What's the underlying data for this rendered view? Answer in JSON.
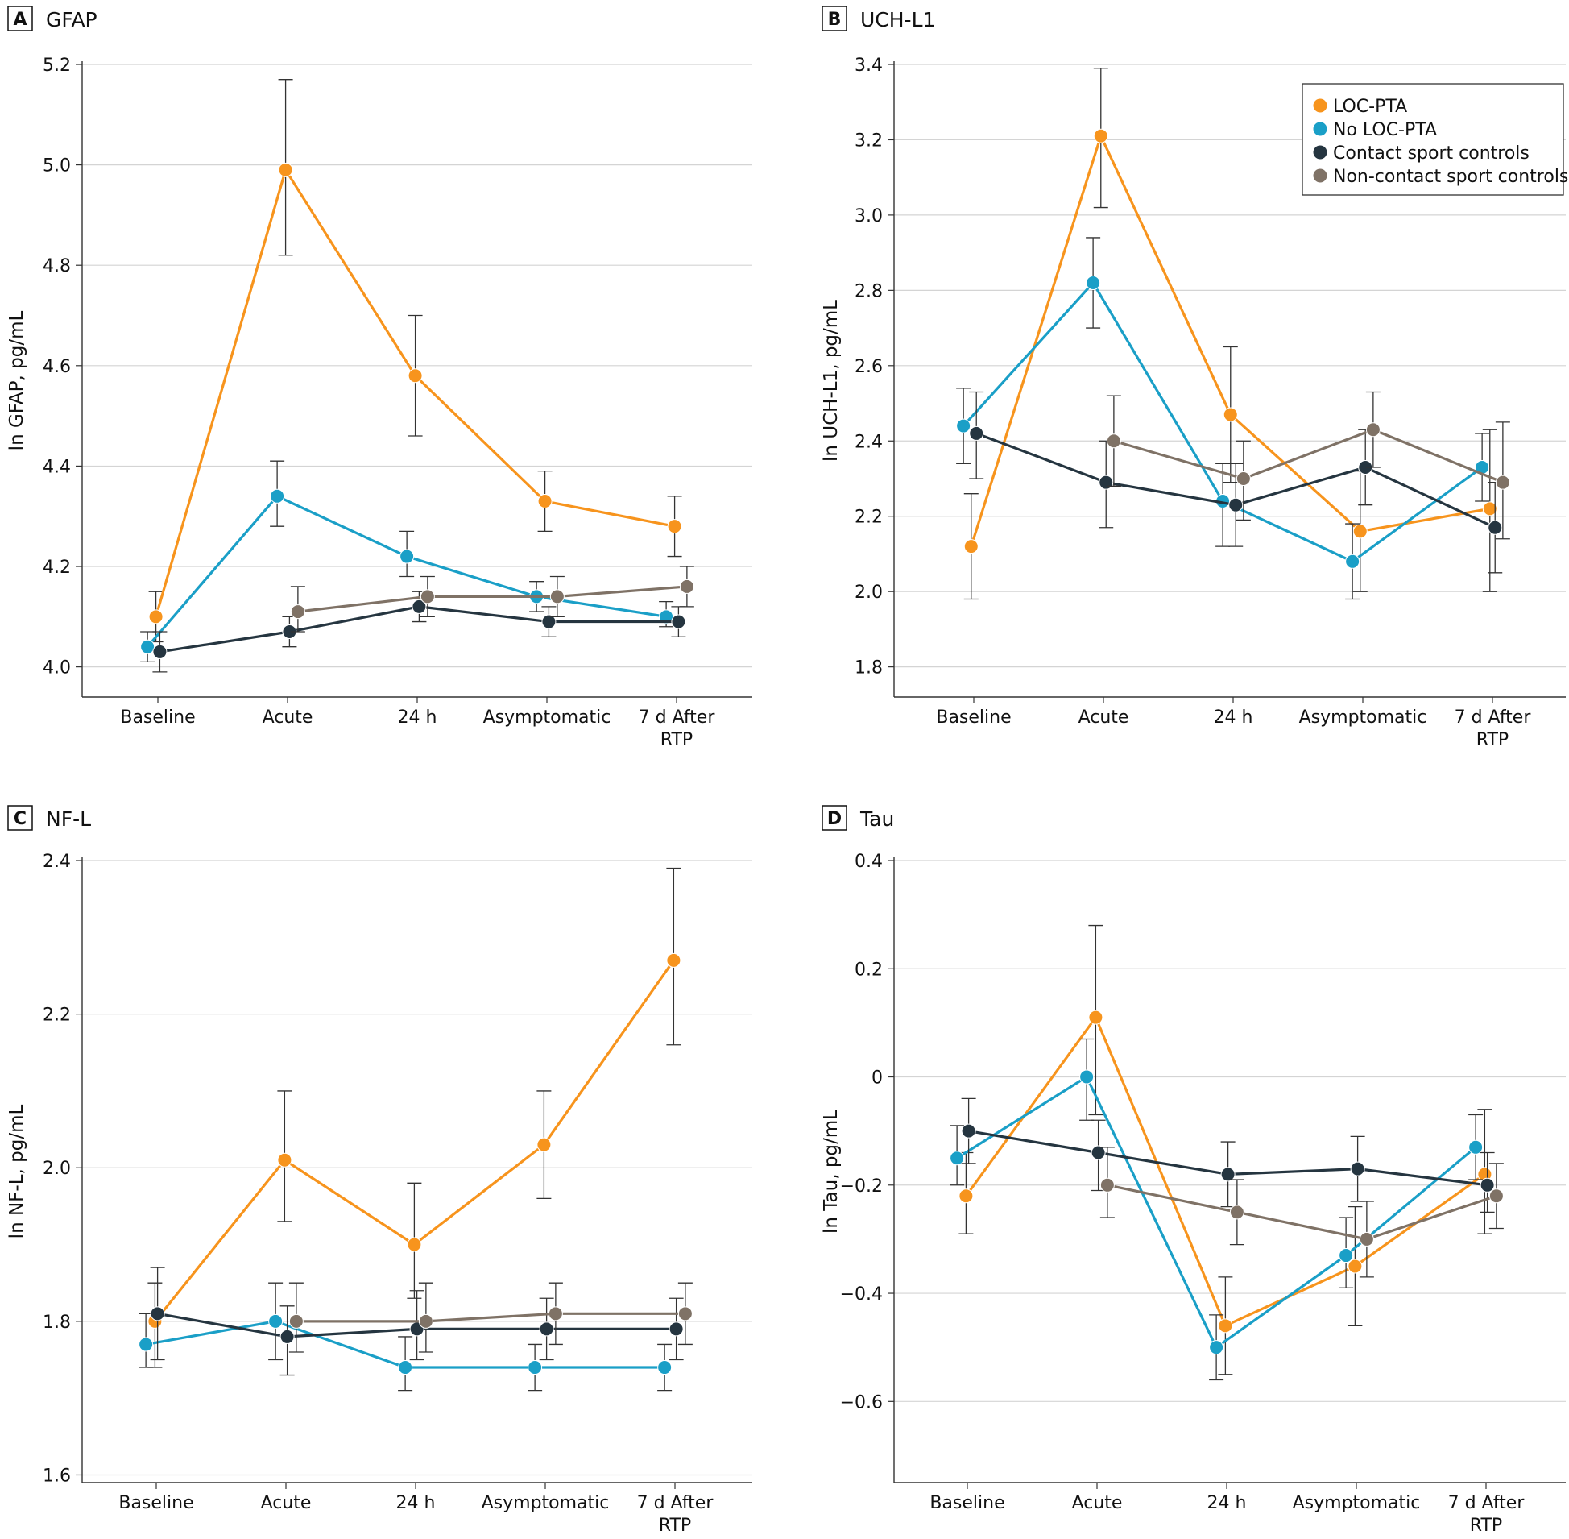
{
  "chart_data": [
    {
      "type": "line",
      "panel_letter": "A",
      "title": "GFAP",
      "ylabel": "ln GFAP, pg/mL",
      "categories": [
        "Baseline",
        "Acute",
        "24 h",
        "Asymptomatic",
        "7 d After RTP"
      ],
      "category_lines": [
        [
          "Baseline"
        ],
        [
          "Acute"
        ],
        [
          "24 h"
        ],
        [
          "Asymptomatic"
        ],
        [
          "7 d After",
          "RTP"
        ]
      ],
      "ylim": [
        3.94,
        5.2
      ],
      "yticks": [
        4.0,
        4.2,
        4.4,
        4.6,
        4.8,
        5.0,
        5.2
      ],
      "tick_decimals": 1,
      "grid": true,
      "series": [
        {
          "name": "LOC-PTA",
          "color": "#f7941d",
          "offset": -0.015,
          "values": [
            4.1,
            4.99,
            4.58,
            4.33,
            4.28
          ],
          "lower": [
            4.05,
            4.82,
            4.46,
            4.27,
            4.22
          ],
          "upper": [
            4.15,
            5.17,
            4.7,
            4.39,
            4.34
          ]
        },
        {
          "name": "No LOC-PTA",
          "color": "#1a9fc7",
          "offset": -0.08,
          "values": [
            4.04,
            4.34,
            4.22,
            4.14,
            4.1
          ],
          "lower": [
            4.01,
            4.28,
            4.18,
            4.11,
            4.08
          ],
          "upper": [
            4.07,
            4.41,
            4.27,
            4.17,
            4.13
          ]
        },
        {
          "name": "Contact sport controls",
          "color": "#253540",
          "offset": 0.015,
          "values": [
            4.03,
            4.07,
            4.12,
            4.09,
            4.09
          ],
          "lower": [
            3.99,
            4.04,
            4.09,
            4.06,
            4.06
          ],
          "upper": [
            4.07,
            4.1,
            4.15,
            4.12,
            4.12
          ]
        },
        {
          "name": "Non-contact sport controls",
          "color": "#7f7266",
          "offset": 0.08,
          "values": [
            null,
            4.11,
            4.14,
            4.14,
            4.16
          ],
          "lower": [
            null,
            4.07,
            4.1,
            4.1,
            4.12
          ],
          "upper": [
            null,
            4.16,
            4.18,
            4.18,
            4.2
          ]
        }
      ]
    },
    {
      "type": "line",
      "panel_letter": "B",
      "title": "UCH-L1",
      "ylabel": "ln UCH-L1, pg/mL",
      "categories": [
        "Baseline",
        "Acute",
        "24 h",
        "Asymptomatic",
        "7 d After RTP"
      ],
      "category_lines": [
        [
          "Baseline"
        ],
        [
          "Acute"
        ],
        [
          "24 h"
        ],
        [
          "Asymptomatic"
        ],
        [
          "7 d After",
          "RTP"
        ]
      ],
      "ylim": [
        1.72,
        3.4
      ],
      "yticks": [
        1.8,
        2.0,
        2.2,
        2.4,
        2.6,
        2.8,
        3.0,
        3.2,
        3.4
      ],
      "tick_decimals": 1,
      "grid": true,
      "legend": {
        "position": "top-right"
      },
      "series": [
        {
          "name": "LOC-PTA",
          "color": "#f7941d",
          "offset": -0.02,
          "values": [
            2.12,
            3.21,
            2.47,
            2.16,
            2.22
          ],
          "lower": [
            1.98,
            3.02,
            2.29,
            2.0,
            2.0
          ],
          "upper": [
            2.26,
            3.39,
            2.65,
            2.32,
            2.43
          ]
        },
        {
          "name": "No LOC-PTA",
          "color": "#1a9fc7",
          "offset": -0.08,
          "values": [
            2.44,
            2.82,
            2.24,
            2.08,
            2.33
          ],
          "lower": [
            2.34,
            2.7,
            2.12,
            1.98,
            2.24
          ],
          "upper": [
            2.54,
            2.94,
            2.34,
            2.18,
            2.42
          ]
        },
        {
          "name": "Contact sport controls",
          "color": "#253540",
          "offset": 0.02,
          "values": [
            2.42,
            2.29,
            2.23,
            2.33,
            2.17
          ],
          "lower": [
            2.3,
            2.17,
            2.12,
            2.23,
            2.05
          ],
          "upper": [
            2.53,
            2.4,
            2.34,
            2.43,
            2.29
          ]
        },
        {
          "name": "Non-contact sport controls",
          "color": "#7f7266",
          "offset": 0.08,
          "values": [
            null,
            2.4,
            2.3,
            2.43,
            2.29
          ],
          "lower": [
            null,
            2.28,
            2.19,
            2.33,
            2.14
          ],
          "upper": [
            null,
            2.52,
            2.4,
            2.53,
            2.45
          ]
        }
      ]
    },
    {
      "type": "line",
      "panel_letter": "C",
      "title": "NF-L",
      "ylabel": "ln NF-L, pg/mL",
      "categories": [
        "Baseline",
        "Acute",
        "24 h",
        "Asymptomatic",
        "7 d After RTP"
      ],
      "category_lines": [
        [
          "Baseline"
        ],
        [
          "Acute"
        ],
        [
          "24 h"
        ],
        [
          "Asymptomatic"
        ],
        [
          "7 d After",
          "RTP"
        ]
      ],
      "ylim": [
        1.59,
        2.4
      ],
      "yticks": [
        1.6,
        1.8,
        2.0,
        2.2,
        2.4
      ],
      "tick_decimals": 1,
      "grid": true,
      "series": [
        {
          "name": "LOC-PTA",
          "color": "#f7941d",
          "offset": -0.01,
          "values": [
            1.8,
            2.01,
            1.9,
            2.03,
            2.27
          ],
          "lower": [
            1.74,
            1.93,
            1.83,
            1.96,
            2.16
          ],
          "upper": [
            1.85,
            2.1,
            1.98,
            2.1,
            2.39
          ]
        },
        {
          "name": "No LOC-PTA",
          "color": "#1a9fc7",
          "offset": -0.08,
          "values": [
            1.77,
            1.8,
            1.74,
            1.74,
            1.74
          ],
          "lower": [
            1.74,
            1.75,
            1.71,
            1.71,
            1.71
          ],
          "upper": [
            1.81,
            1.85,
            1.78,
            1.77,
            1.77
          ]
        },
        {
          "name": "Contact sport controls",
          "color": "#253540",
          "offset": 0.01,
          "values": [
            1.81,
            1.78,
            1.79,
            1.79,
            1.79
          ],
          "lower": [
            1.75,
            1.73,
            1.75,
            1.75,
            1.75
          ],
          "upper": [
            1.87,
            1.82,
            1.84,
            1.83,
            1.83
          ]
        },
        {
          "name": "Non-contact sport controls",
          "color": "#7f7266",
          "offset": 0.08,
          "values": [
            null,
            1.8,
            1.8,
            1.81,
            1.81
          ],
          "lower": [
            null,
            1.76,
            1.76,
            1.77,
            1.77
          ],
          "upper": [
            null,
            1.85,
            1.85,
            1.85,
            1.85
          ]
        }
      ]
    },
    {
      "type": "line",
      "panel_letter": "D",
      "title": "Tau",
      "ylabel": "ln Tau, pg/mL",
      "categories": [
        "Baseline",
        "Acute",
        "24 h",
        "Asymptomatic",
        "7 d After RTP"
      ],
      "category_lines": [
        [
          "Baseline"
        ],
        [
          "Acute"
        ],
        [
          "24 h"
        ],
        [
          "Asymptomatic"
        ],
        [
          "7 d After",
          "RTP"
        ]
      ],
      "ylim": [
        -0.75,
        0.4
      ],
      "yticks": [
        -0.6,
        -0.4,
        -0.2,
        0,
        0.2,
        0.4
      ],
      "tick_decimals": 1,
      "grid": true,
      "series": [
        {
          "name": "LOC-PTA",
          "color": "#f7941d",
          "offset": -0.01,
          "values": [
            -0.22,
            0.11,
            -0.46,
            -0.35,
            -0.18
          ],
          "lower": [
            -0.29,
            -0.07,
            -0.55,
            -0.46,
            -0.29
          ],
          "upper": [
            -0.14,
            0.28,
            -0.37,
            -0.24,
            -0.06
          ]
        },
        {
          "name": "No LOC-PTA",
          "color": "#1a9fc7",
          "offset": -0.08,
          "values": [
            -0.15,
            0.0,
            -0.5,
            -0.33,
            -0.13
          ],
          "lower": [
            -0.2,
            -0.08,
            -0.56,
            -0.39,
            -0.19
          ],
          "upper": [
            -0.09,
            0.07,
            -0.44,
            -0.26,
            -0.07
          ]
        },
        {
          "name": "Contact sport controls",
          "color": "#253540",
          "offset": 0.01,
          "values": [
            -0.1,
            -0.14,
            -0.18,
            -0.17,
            -0.2
          ],
          "lower": [
            -0.16,
            -0.21,
            -0.24,
            -0.23,
            -0.25
          ],
          "upper": [
            -0.04,
            -0.08,
            -0.12,
            -0.11,
            -0.14
          ]
        },
        {
          "name": "Non-contact sport controls",
          "color": "#7f7266",
          "offset": 0.08,
          "values": [
            null,
            -0.2,
            -0.25,
            -0.3,
            -0.22
          ],
          "lower": [
            null,
            -0.26,
            -0.31,
            -0.37,
            -0.28
          ],
          "upper": [
            null,
            -0.13,
            -0.19,
            -0.23,
            -0.16
          ]
        }
      ]
    }
  ]
}
